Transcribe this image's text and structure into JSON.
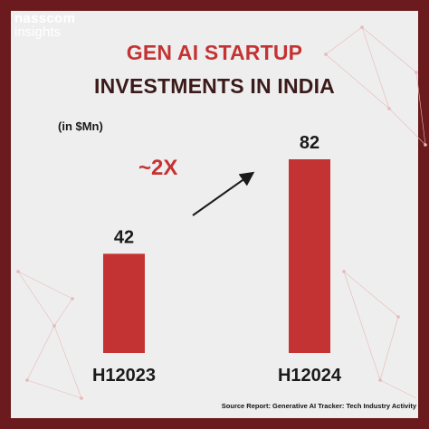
{
  "brand": {
    "line1": "nasscom",
    "line2": "insights"
  },
  "title_line1": "GEN AI STARTUP",
  "title_line2": "INVESTMENTS IN INDIA",
  "unit_label": "(in $Mn)",
  "growth_label": "~2X",
  "source": "Source Report: Generative AI Tracker: Tech Industry Activity",
  "colors": {
    "frame": "#6b1a1d",
    "bar": "#c43333",
    "accent": "#c43333"
  },
  "chart_data": {
    "type": "bar",
    "title": "GEN AI STARTUP INVESTMENTS IN INDIA",
    "ylabel": "(in $Mn)",
    "categories": [
      "H12023",
      "H12024"
    ],
    "values": [
      42,
      82
    ],
    "ylim": [
      0,
      82
    ],
    "grid": false,
    "annotation": "~2X"
  }
}
